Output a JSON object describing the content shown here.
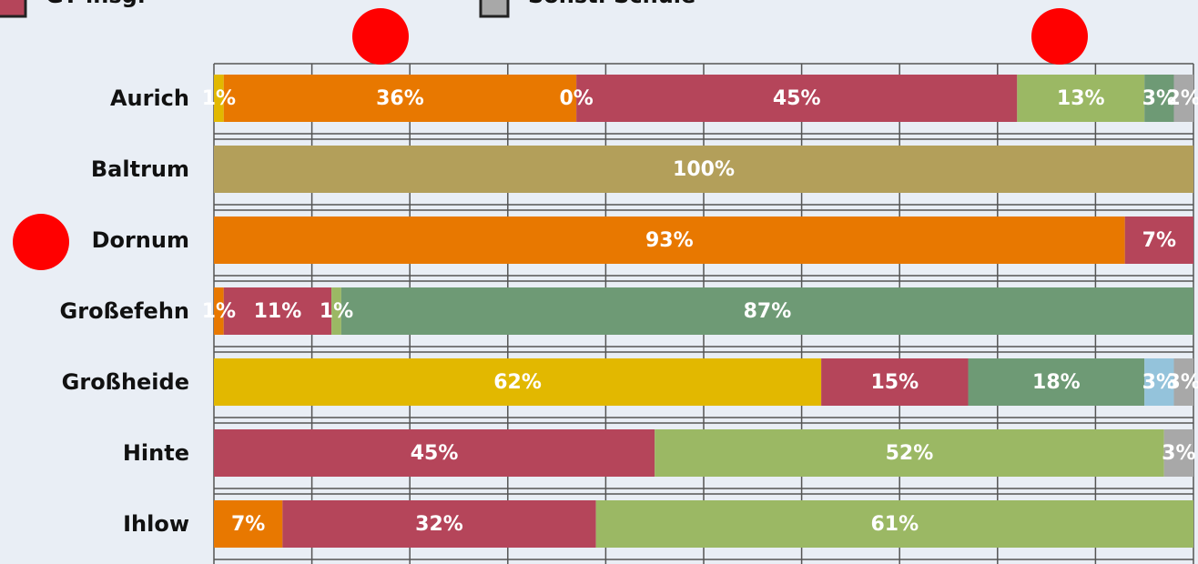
{
  "chart_data": {
    "type": "bar",
    "orientation": "horizontal",
    "stacked": true,
    "categories": [
      "Aurich",
      "Baltrum",
      "Dornum",
      "Großefehn",
      "Großheide",
      "Hinte",
      "Ihlow"
    ],
    "xlim": [
      0,
      100
    ],
    "xticks": [
      0,
      10,
      20,
      30,
      40,
      50,
      60,
      70,
      80,
      90,
      100
    ],
    "grid": true,
    "series": [
      {
        "color": "#e2b800",
        "values": [
          1,
          null,
          null,
          null,
          62,
          null,
          null
        ],
        "value_labels": [
          "1%",
          null,
          null,
          null,
          "62%",
          null,
          null
        ]
      },
      {
        "color": "#e87800",
        "values": [
          36,
          null,
          93,
          1,
          null,
          null,
          7
        ],
        "value_labels": [
          "36%",
          null,
          "93%",
          "1%",
          null,
          null,
          "7%"
        ]
      },
      {
        "color": "#b39f5a",
        "values": [
          0,
          100,
          null,
          null,
          null,
          null,
          null
        ],
        "value_labels": [
          "0%",
          "100%",
          null,
          null,
          null,
          null,
          null
        ]
      },
      {
        "name": "GT insg.",
        "color": "#b5455a",
        "values": [
          45,
          null,
          7,
          11,
          15,
          45,
          32
        ],
        "value_labels": [
          "45%",
          null,
          "7%",
          "11%",
          "15%",
          "45%",
          "32%"
        ]
      },
      {
        "color": "#9bb864",
        "values": [
          13,
          null,
          null,
          1,
          null,
          52,
          61
        ],
        "value_labels": [
          "13%",
          null,
          null,
          "1%",
          null,
          "52%",
          "61%"
        ]
      },
      {
        "color": "#6e9a75",
        "values": [
          3,
          null,
          null,
          87,
          18,
          null,
          null
        ],
        "value_labels": [
          "3%",
          null,
          null,
          "87%",
          "18%",
          null,
          null
        ]
      },
      {
        "color": "#94c3db",
        "values": [
          null,
          null,
          null,
          null,
          3,
          null,
          null
        ],
        "value_labels": [
          null,
          null,
          null,
          null,
          "3%",
          null,
          null
        ]
      },
      {
        "name": "Sonst. Schule",
        "color": "#a8a8a8",
        "values": [
          2,
          null,
          null,
          null,
          3,
          3,
          null
        ],
        "value_labels": [
          "2%",
          null,
          null,
          null,
          "3%",
          "3%",
          null
        ]
      }
    ]
  }
}
